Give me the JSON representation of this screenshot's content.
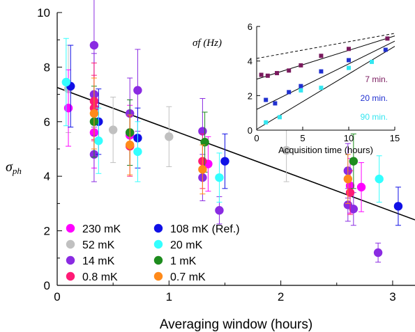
{
  "chart_data": [
    {
      "type": "scatter",
      "xlabel": "Averaging window (hours)",
      "ylabel": "σph",
      "xlim": [
        0,
        3.2
      ],
      "ylim": [
        0,
        10
      ],
      "xticks": [
        "0",
        "1",
        "2",
        "3"
      ],
      "yticks": [
        "0",
        "2",
        "4",
        "6",
        "8",
        "10"
      ],
      "grid": false,
      "legend_position": "bottom-left",
      "colors": {
        "230 mK": "#ff00ff",
        "52 mK": "#c0c0c0",
        "14 mK": "#8a2be2",
        "0.8 mK": "#ff1a75",
        "108 mK (Ref.)": "#1010e6",
        "20 mK": "#33ffff",
        "1 mK": "#1e8c1e",
        "0.7 mK": "#ff8a1a"
      },
      "series": [
        {
          "name": "52 mK",
          "points": [
            {
              "x": 0.1,
              "y": 7.2,
              "err": 1.6
            },
            {
              "x": 0.5,
              "y": 5.7,
              "err": 1.2
            },
            {
              "x": 1.0,
              "y": 5.45,
              "err": 1.1
            },
            {
              "x": 2.05,
              "y": 4.95,
              "err": 1.15
            }
          ]
        },
        {
          "name": "230 mK",
          "points": [
            {
              "x": 0.1,
              "y": 6.5,
              "err": 1.4
            },
            {
              "x": 0.33,
              "y": 5.6,
              "err": 1.3
            },
            {
              "x": 0.65,
              "y": 5.5,
              "err": 1.1
            },
            {
              "x": 1.35,
              "y": 4.45,
              "err": 1.0
            },
            {
              "x": 2.62,
              "y": 3.65,
              "err": 1.0
            },
            {
              "x": 2.72,
              "y": 3.6,
              "err": 0.9
            }
          ]
        },
        {
          "name": "14 mK",
          "points": [
            {
              "x": 0.33,
              "y": 8.8,
              "err": 2.0
            },
            {
              "x": 0.33,
              "y": 7.0,
              "err": 1.5
            },
            {
              "x": 0.33,
              "y": 4.8,
              "err": 1.0
            },
            {
              "x": 0.65,
              "y": 6.3,
              "err": 1.3
            },
            {
              "x": 0.65,
              "y": 5.6,
              "err": 1.2
            },
            {
              "x": 0.72,
              "y": 7.15,
              "err": 1.5
            },
            {
              "x": 1.3,
              "y": 5.65,
              "err": 1.2
            },
            {
              "x": 1.3,
              "y": 3.95,
              "err": 0.85
            },
            {
              "x": 1.45,
              "y": 2.75,
              "err": 0.5
            },
            {
              "x": 2.6,
              "y": 4.2,
              "err": 1.0
            },
            {
              "x": 2.6,
              "y": 2.95,
              "err": 0.6
            },
            {
              "x": 2.65,
              "y": 2.8,
              "err": 0.6
            },
            {
              "x": 2.87,
              "y": 1.2,
              "err": 0.35
            }
          ]
        },
        {
          "name": "0.8 mK",
          "points": [
            {
              "x": 0.33,
              "y": 6.75,
              "err": 1.4
            },
            {
              "x": 0.33,
              "y": 6.5,
              "err": 1.2
            },
            {
              "x": 0.65,
              "y": 5.1,
              "err": 1.1
            },
            {
              "x": 1.3,
              "y": 4.55,
              "err": 1.0
            },
            {
              "x": 2.62,
              "y": 3.4,
              "err": 0.8
            }
          ]
        },
        {
          "name": "108 mK (Ref.)",
          "points": [
            {
              "x": 0.12,
              "y": 7.3,
              "err": 1.5
            },
            {
              "x": 0.37,
              "y": 6.0,
              "err": 1.2
            },
            {
              "x": 0.72,
              "y": 5.4,
              "err": 1.1
            },
            {
              "x": 1.5,
              "y": 4.55,
              "err": 1.0
            },
            {
              "x": 3.05,
              "y": 2.9,
              "err": 0.7
            }
          ]
        },
        {
          "name": "20 mK",
          "points": [
            {
              "x": 0.08,
              "y": 7.45,
              "err": 1.6
            },
            {
              "x": 0.37,
              "y": 5.3,
              "err": 1.2
            },
            {
              "x": 0.72,
              "y": 4.9,
              "err": 1.1
            },
            {
              "x": 1.45,
              "y": 3.95,
              "err": 0.9
            },
            {
              "x": 2.88,
              "y": 3.9,
              "err": 0.85
            }
          ]
        },
        {
          "name": "1 mK",
          "points": [
            {
              "x": 0.33,
              "y": 6.0,
              "err": 1.3
            },
            {
              "x": 0.65,
              "y": 5.6,
              "err": 1.2
            },
            {
              "x": 1.32,
              "y": 5.25,
              "err": 1.1
            },
            {
              "x": 2.65,
              "y": 4.55,
              "err": 1.0
            }
          ]
        },
        {
          "name": "0.7 mK",
          "points": [
            {
              "x": 0.33,
              "y": 6.3,
              "err": 1.3
            },
            {
              "x": 0.65,
              "y": 5.15,
              "err": 1.1
            },
            {
              "x": 1.3,
              "y": 4.25,
              "err": 0.9
            },
            {
              "x": 2.6,
              "y": 3.9,
              "err": 0.9
            }
          ]
        }
      ],
      "fit_line": {
        "x": [
          0,
          3.2
        ],
        "y": [
          7.25,
          2.4
        ]
      }
    },
    {
      "type": "scatter",
      "xlabel": "Acquisition time (hours)",
      "ylabel": "σf (Hz)",
      "xlim": [
        0,
        15
      ],
      "ylim": [
        0,
        6
      ],
      "xticks": [
        "0",
        "5",
        "10",
        "15"
      ],
      "yticks": [
        "0",
        "2",
        "4",
        "6"
      ],
      "series": [
        {
          "name": "7 min.",
          "color": "#7a1a5e",
          "points": [
            {
              "x": 0.5,
              "y": 3.2
            },
            {
              "x": 1.2,
              "y": 3.15
            },
            {
              "x": 2.2,
              "y": 3.3
            },
            {
              "x": 3.5,
              "y": 3.45
            },
            {
              "x": 4.8,
              "y": 3.75
            },
            {
              "x": 7.0,
              "y": 4.3
            },
            {
              "x": 10.0,
              "y": 4.7
            },
            {
              "x": 14.2,
              "y": 5.3
            }
          ]
        },
        {
          "name": "20 min.",
          "color": "#2030d0",
          "points": [
            {
              "x": 1.0,
              "y": 1.75
            },
            {
              "x": 2.0,
              "y": 1.55
            },
            {
              "x": 3.5,
              "y": 2.2
            },
            {
              "x": 4.8,
              "y": 2.55
            },
            {
              "x": 7.0,
              "y": 3.4
            },
            {
              "x": 10.0,
              "y": 4.05
            },
            {
              "x": 14.0,
              "y": 4.65
            }
          ]
        },
        {
          "name": "90 min.",
          "color": "#33e6f0",
          "points": [
            {
              "x": 1.0,
              "y": 0.45
            },
            {
              "x": 2.5,
              "y": 0.75
            },
            {
              "x": 4.8,
              "y": 2.3
            },
            {
              "x": 7.0,
              "y": 2.45
            },
            {
              "x": 10.0,
              "y": 3.6
            },
            {
              "x": 12.5,
              "y": 3.95
            }
          ]
        }
      ],
      "fit_lines": [
        {
          "style": "solid",
          "x": [
            0,
            15
          ],
          "y": [
            2.95,
            5.45
          ]
        },
        {
          "style": "solid",
          "x": [
            0,
            15
          ],
          "y": [
            1.2,
            5.15
          ]
        },
        {
          "style": "solid",
          "x": [
            0,
            15
          ],
          "y": [
            0.05,
            4.85
          ]
        },
        {
          "style": "dashed",
          "x": [
            0,
            15
          ],
          "y": [
            4.15,
            5.6
          ]
        }
      ]
    }
  ]
}
